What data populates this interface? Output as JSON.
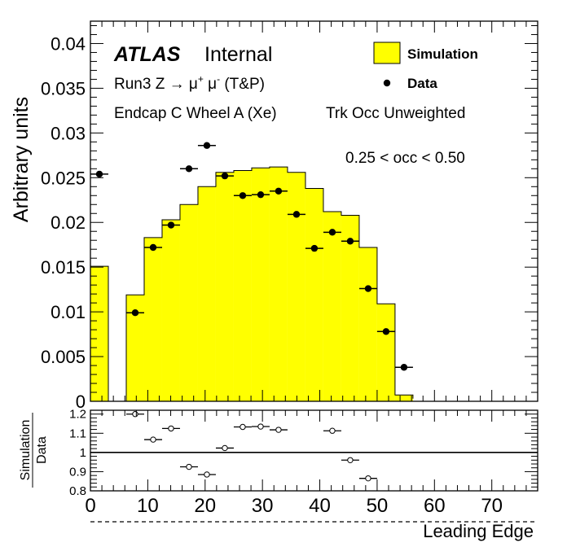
{
  "labels": {
    "atlas": "ATLAS",
    "internal": "Internal",
    "line1_prefix": "Run3 Z ",
    "line1_arrow": "→",
    "line1_mu1": " μ",
    "line1_sup1": "+",
    "line1_mu2": " μ",
    "line1_sup2": "-",
    "line1_suffix": " (T&P)",
    "line2": "Endcap C Wheel A (Xe)",
    "line3": "Trk Occ Unweighted",
    "occ_range": "0.25 < occ < 0.50",
    "ratio_num": "Simulation",
    "ratio_den": "Data"
  },
  "colors": {
    "simulation_fill": "#ffff00",
    "simulation_edge": "#000000",
    "data_marker": "#000000",
    "ratio_marker_fill": "#ffffff"
  },
  "chart_data": [
    {
      "type": "bar",
      "ylabel": "Arbitrary units",
      "xlim": [
        0,
        78
      ],
      "ylim": [
        0,
        0.0425
      ],
      "yticks": [
        "0",
        "0.005",
        "0.01",
        "0.015",
        "0.02",
        "0.025",
        "0.03",
        "0.035",
        "0.04"
      ],
      "ytick_values": [
        0,
        0.005,
        0.01,
        0.015,
        0.02,
        0.025,
        0.03,
        0.035,
        0.04
      ],
      "xtick_values": [
        0,
        10,
        20,
        30,
        40,
        50,
        60,
        70
      ],
      "bin_width": 3.125,
      "legend_position": "top-right",
      "series": [
        {
          "name": "Simulation",
          "style": "filled-histogram",
          "bin_edges": [
            0,
            3.125,
            6.25,
            9.375,
            12.5,
            15.625,
            18.75,
            21.875,
            25,
            28.125,
            31.25,
            34.375,
            37.5,
            40.625,
            43.75,
            46.875,
            50,
            53.125,
            56.25
          ],
          "values": [
            0.0151,
            0,
            0.0119,
            0.0183,
            0.0203,
            0.022,
            0.024,
            0.0256,
            0.0258,
            0.0261,
            0.0262,
            0.0256,
            0.0238,
            0.0212,
            0.0208,
            0.0172,
            0.0109,
            0.0007,
            0.0003
          ]
        },
        {
          "name": "Data",
          "style": "points",
          "x": [
            1.56,
            7.81,
            10.94,
            14.06,
            17.19,
            20.31,
            23.44,
            26.56,
            29.69,
            32.81,
            35.94,
            39.06,
            42.19,
            45.31,
            48.44,
            51.56,
            54.69
          ],
          "values": [
            0.0254,
            0.0099,
            0.0172,
            0.0197,
            0.026,
            0.0286,
            0.0252,
            0.023,
            0.0231,
            0.0235,
            0.0209,
            0.0171,
            0.0189,
            0.0179,
            0.0126,
            0.0078,
            0.0038
          ]
        }
      ]
    },
    {
      "type": "scatter",
      "xlabel": "Leading Edge",
      "xlim": [
        0,
        78
      ],
      "ylim": [
        0.8,
        1.22
      ],
      "yticks": [
        "0.8",
        "0.9",
        "1",
        "1.1",
        "1.2"
      ],
      "ytick_values": [
        0.8,
        0.9,
        1.0,
        1.1,
        1.2
      ],
      "xticks": [
        "0",
        "10",
        "20",
        "30",
        "40",
        "50",
        "60",
        "70"
      ],
      "xtick_values": [
        0,
        10,
        20,
        30,
        40,
        50,
        60,
        70
      ],
      "reference_line": 1.0,
      "series": [
        {
          "name": "Simulation / Data",
          "x": [
            7.81,
            10.94,
            14.06,
            17.19,
            20.31,
            23.44,
            26.56,
            29.69,
            32.81,
            42.19,
            45.31,
            48.44
          ],
          "values": [
            1.2,
            1.067,
            1.125,
            0.925,
            0.885,
            1.023,
            1.133,
            1.135,
            1.118,
            1.113,
            0.96,
            0.865
          ]
        }
      ]
    }
  ]
}
